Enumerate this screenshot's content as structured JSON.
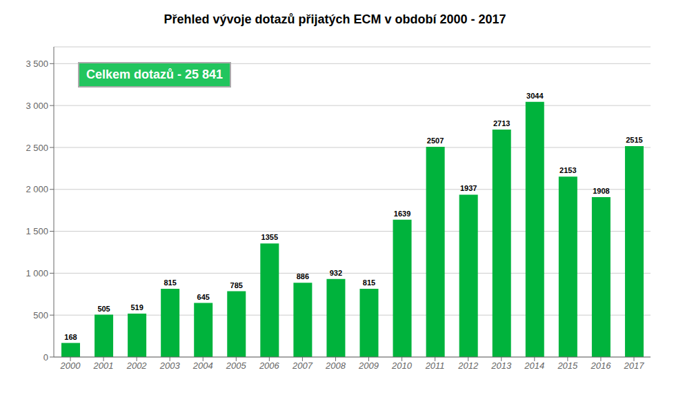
{
  "chart_data": {
    "type": "bar",
    "title": "Přehled vývoje dotazů přijatých ECM v období 2000 - 2017",
    "categories": [
      "2000",
      "2001",
      "2002",
      "2003",
      "2004",
      "2005",
      "2006",
      "2007",
      "2008",
      "2009",
      "2010",
      "2011",
      "2012",
      "2013",
      "2014",
      "2015",
      "2016",
      "2017"
    ],
    "values": [
      168,
      505,
      519,
      815,
      645,
      785,
      1355,
      886,
      932,
      815,
      1639,
      2507,
      1937,
      2713,
      3044,
      2153,
      1908,
      2515
    ],
    "color": "#00b33c",
    "ylim": [
      0,
      3700
    ],
    "yticks": [
      0,
      500,
      {
        "value": 1000,
        "label": "1 000"
      },
      {
        "value": 1500,
        "label": "1 500"
      },
      {
        "value": 2000,
        "label": "2 000"
      },
      {
        "value": 2500,
        "label": "2 500"
      },
      {
        "value": 3000,
        "label": "3 000"
      },
      {
        "value": 3500,
        "label": "3 500"
      }
    ],
    "grid": true,
    "data_labels": true,
    "annotation": "Celkem dotazů - 25 841"
  }
}
